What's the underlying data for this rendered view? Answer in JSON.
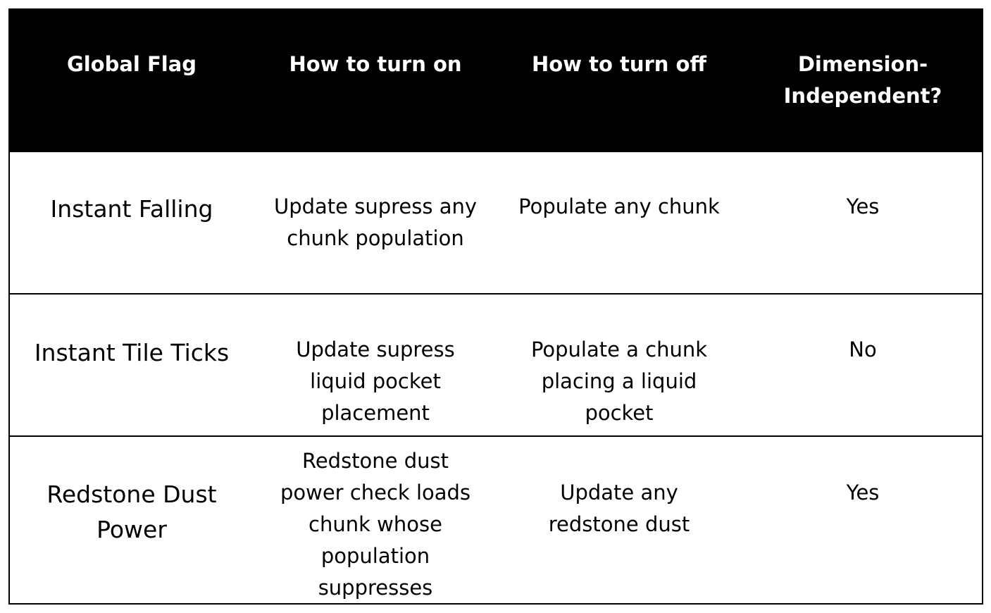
{
  "table": {
    "headers": {
      "flag": "Global Flag",
      "on": "How to turn on",
      "off": "How to turn off",
      "dim": "Dimension-\nIndependent?"
    },
    "rows": [
      {
        "flag": "Instant Falling",
        "on": "Update supress any\nchunk population",
        "off": "Populate any chunk",
        "dim": "Yes"
      },
      {
        "flag": "Instant Tile Ticks",
        "on": "Update supress\nliquid pocket\nplacement",
        "off": "Populate a chunk\nplacing a liquid\npocket",
        "dim": "No"
      },
      {
        "flag": "Redstone Dust\nPower",
        "on": "Redstone dust\npower check loads\nchunk whose\npopulation\nsuppresses",
        "off": "Update any\nredstone dust",
        "dim": "Yes"
      }
    ]
  }
}
